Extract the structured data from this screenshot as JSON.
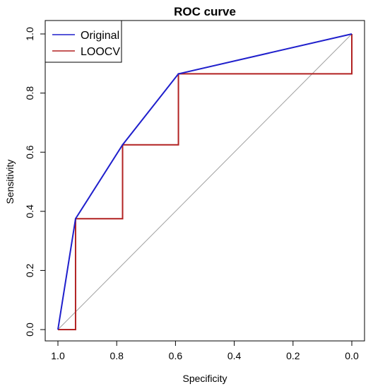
{
  "chart_data": {
    "type": "line",
    "title": "ROC curve",
    "xlabel": "Specificity",
    "ylabel": "Sensitivity",
    "xlim": [
      1.0,
      0.0
    ],
    "ylim": [
      0.0,
      1.0
    ],
    "x_axis_reversed": true,
    "x_ticks": [
      "1.0",
      "0.8",
      "0.6",
      "0.4",
      "0.2",
      "0.0"
    ],
    "y_ticks": [
      "0.0",
      "0.2",
      "0.4",
      "0.6",
      "0.8",
      "1.0"
    ],
    "grid": false,
    "legend_position": "top-left",
    "reference_line": {
      "x": [
        1.0,
        0.0
      ],
      "y": [
        0.0,
        1.0
      ],
      "color": "#a0a0a0"
    },
    "series": [
      {
        "name": "Original",
        "color": "#1f1fcc",
        "x": [
          1.0,
          0.94,
          0.78,
          0.59,
          0.0
        ],
        "y": [
          0.0,
          0.375,
          0.625,
          0.865,
          1.0
        ]
      },
      {
        "name": "LOOCV",
        "color": "#b22222",
        "x": [
          1.0,
          0.94,
          0.94,
          0.78,
          0.78,
          0.59,
          0.59,
          0.0,
          0.0
        ],
        "y": [
          0.0,
          0.0,
          0.375,
          0.375,
          0.625,
          0.625,
          0.865,
          0.865,
          1.0
        ]
      }
    ]
  }
}
